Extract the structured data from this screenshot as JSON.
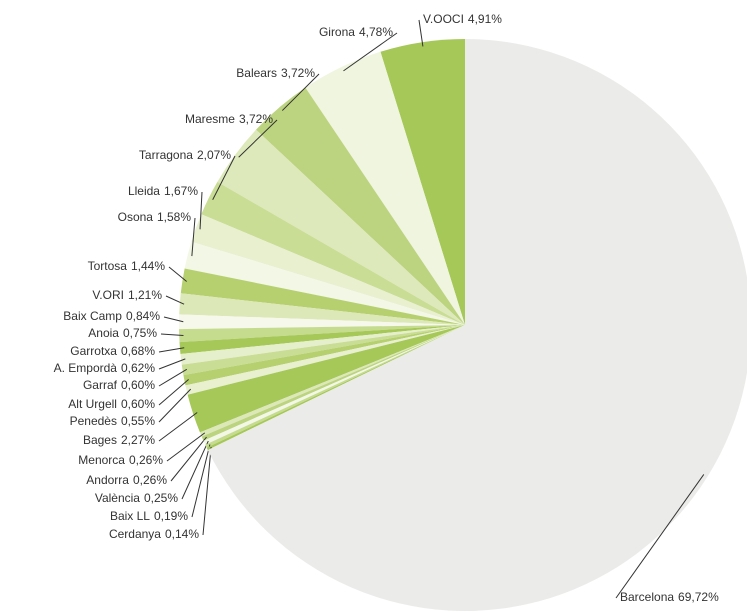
{
  "chart_data": {
    "type": "pie",
    "categories": [
      "V.OOCI",
      "Girona",
      "Balears",
      "Maresme",
      "Tarragona",
      "Lleida",
      "Osona",
      "Tortosa",
      "V.ORI",
      "Baix Camp",
      "Anoia",
      "Garrotxa",
      "A. Empordà",
      "Garraf",
      "Alt Urgell",
      "Penedès",
      "Bages",
      "Menorca",
      "Andorra",
      "València",
      "Baix LL",
      "Cerdanya",
      "Barcelona"
    ],
    "values": [
      4.91,
      4.78,
      3.72,
      3.72,
      2.07,
      1.67,
      1.58,
      1.44,
      1.21,
      0.84,
      0.75,
      0.68,
      0.62,
      0.6,
      0.6,
      0.55,
      2.27,
      0.26,
      0.26,
      0.25,
      0.19,
      0.14,
      69.72
    ],
    "value_labels": [
      "4,91%",
      "4,78%",
      "3,72%",
      "3,72%",
      "2,07%",
      "1,67%",
      "1,58%",
      "1,44%",
      "1,21%",
      "0,84%",
      "0,75%",
      "0,68%",
      "0,62%",
      "0,60%",
      "0,60%",
      "0,55%",
      "2,27%",
      "0,26%",
      "0,26%",
      "0,25%",
      "0,19%",
      "0,14%",
      "69,72%"
    ],
    "colors": [
      "#a5c858",
      "#eff5de",
      "#bcd47f",
      "#dde9bb",
      "#c9dd95",
      "#e8f0d0",
      "#f3f7e6",
      "#b6d06f",
      "#dce8b7",
      "#f5f8ea",
      "#c5db8e",
      "#a5c858",
      "#e6efcb",
      "#c9dd95",
      "#b6d06f",
      "#e8f0d0",
      "#a5c858",
      "#dce8b7",
      "#bcd47f",
      "#f3f7e6",
      "#c5db8e",
      "#a5c858",
      "#ebebe9"
    ]
  }
}
